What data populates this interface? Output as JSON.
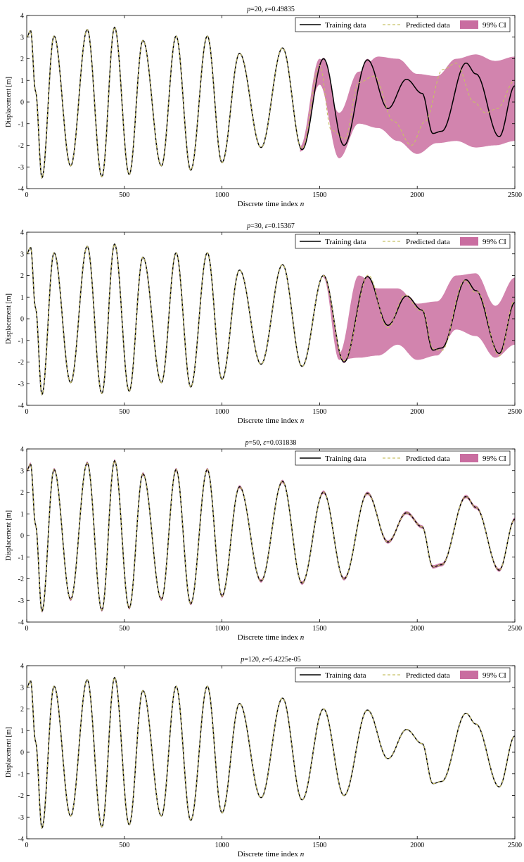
{
  "chart_data": [
    {
      "type": "line",
      "title": "p=20, ε=0.49835",
      "title_parts": {
        "p": "20",
        "eps": "0.49835"
      },
      "xlabel": "Discrete time index n",
      "ylabel": "Displacement [m]",
      "xlim": [
        0,
        2500
      ],
      "ylim": [
        -4,
        4
      ],
      "xticks": [
        "0",
        "500",
        "1000",
        "1500",
        "2000",
        "2500"
      ],
      "yticks": [
        "-4",
        "-3",
        "-2",
        "-1",
        "0",
        "1",
        "2",
        "3",
        "4"
      ],
      "legend_position": "top-right",
      "legend": [
        "Training data",
        "Predicted data",
        "99% CI"
      ],
      "extrapolation_start": 1400,
      "series": [
        {
          "name": "Training data",
          "style": "solid",
          "color": "#000000"
        },
        {
          "name": "Predicted data",
          "style": "dashed",
          "color": "#c8c064",
          "values": [
            [
              0,
              3.0
            ],
            [
              20,
              3.1
            ],
            [
              45,
              0.5
            ],
            [
              78,
              -3.5
            ],
            [
              140,
              3.0
            ],
            [
              225,
              -2.9
            ],
            [
              310,
              3.35
            ],
            [
              385,
              -3.4
            ],
            [
              450,
              3.45
            ],
            [
              525,
              -3.3
            ],
            [
              595,
              2.85
            ],
            [
              690,
              -2.9
            ],
            [
              765,
              3.05
            ],
            [
              840,
              -3.1
            ],
            [
              925,
              3.05
            ],
            [
              1000,
              -2.8
            ],
            [
              1090,
              2.25
            ],
            [
              1200,
              -2.05
            ],
            [
              1310,
              2.5
            ],
            [
              1410,
              -2.15
            ],
            [
              1500,
              1.7
            ],
            [
              1560,
              -1.3
            ],
            [
              1630,
              -1.7
            ],
            [
              1700,
              0.9
            ],
            [
              1780,
              1.2
            ],
            [
              1880,
              -0.9
            ],
            [
              1970,
              -2.0
            ],
            [
              2040,
              -0.9
            ],
            [
              2130,
              1.5
            ],
            [
              2200,
              1.8
            ],
            [
              2290,
              0.0
            ],
            [
              2350,
              -0.5
            ],
            [
              2410,
              -0.3
            ],
            [
              2500,
              1.0
            ]
          ]
        },
        {
          "name": "99% CI",
          "style": "band",
          "color": "#c0548f",
          "lower": [
            [
              1400,
              -2.3
            ],
            [
              1500,
              0.8
            ],
            [
              1600,
              -2.6
            ],
            [
              1700,
              -1.0
            ],
            [
              1800,
              -1.2
            ],
            [
              1900,
              -1.8
            ],
            [
              2000,
              -2.4
            ],
            [
              2100,
              -1.9
            ],
            [
              2200,
              -1.8
            ],
            [
              2300,
              -2.1
            ],
            [
              2400,
              -2.0
            ],
            [
              2500,
              -1.8
            ]
          ],
          "upper": [
            [
              1400,
              -2.05
            ],
            [
              1500,
              2.0
            ],
            [
              1600,
              -0.5
            ],
            [
              1700,
              1.4
            ],
            [
              1800,
              2.1
            ],
            [
              1900,
              2.0
            ],
            [
              2000,
              1.3
            ],
            [
              2100,
              1.2
            ],
            [
              2200,
              2.0
            ],
            [
              2300,
              2.2
            ],
            [
              2400,
              1.9
            ],
            [
              2500,
              2.1
            ]
          ]
        }
      ]
    },
    {
      "type": "line",
      "title": "p=30, ε=0.15367",
      "title_parts": {
        "p": "30",
        "eps": "0.15367"
      },
      "xlabel": "Discrete time index n",
      "ylabel": "Displacement [m]",
      "xlim": [
        0,
        2500
      ],
      "ylim": [
        -4,
        4
      ],
      "xticks": [
        "0",
        "500",
        "1000",
        "1500",
        "2000",
        "2500"
      ],
      "yticks": [
        "-4",
        "-3",
        "-2",
        "-1",
        "0",
        "1",
        "2",
        "3",
        "4"
      ],
      "legend_position": "top-right",
      "legend": [
        "Training data",
        "Predicted data",
        "99% CI"
      ],
      "extrapolation_start": 1520,
      "series": [
        {
          "name": "Training data",
          "style": "solid",
          "color": "#000000"
        },
        {
          "name": "Predicted data",
          "style": "dashed",
          "color": "#c8c064"
        },
        {
          "name": "99% CI",
          "style": "band",
          "color": "#c0548f",
          "lower": [
            [
              1520,
              1.9
            ],
            [
              1600,
              -1.9
            ],
            [
              1700,
              -1.8
            ],
            [
              1800,
              -1.7
            ],
            [
              1900,
              -1.2
            ],
            [
              2000,
              -1.9
            ],
            [
              2100,
              -1.7
            ],
            [
              2200,
              -0.5
            ],
            [
              2300,
              -0.8
            ],
            [
              2400,
              -1.8
            ],
            [
              2500,
              -1.2
            ]
          ],
          "upper": [
            [
              1520,
              2.05
            ],
            [
              1600,
              -1.6
            ],
            [
              1700,
              2.0
            ],
            [
              1800,
              1.4
            ],
            [
              1900,
              1.4
            ],
            [
              2000,
              0.7
            ],
            [
              2100,
              0.8
            ],
            [
              2200,
              2.0
            ],
            [
              2300,
              2.1
            ],
            [
              2400,
              0.6
            ],
            [
              2500,
              1.9
            ]
          ]
        }
      ]
    },
    {
      "type": "line",
      "title": "p=50, ε=0.031838",
      "title_parts": {
        "p": "50",
        "eps": "0.031838"
      },
      "xlabel": "Discrete time index n",
      "ylabel": "Displacement [m]",
      "xlim": [
        0,
        2500
      ],
      "ylim": [
        -4,
        4
      ],
      "xticks": [
        "0",
        "500",
        "1000",
        "1500",
        "2000",
        "2500"
      ],
      "yticks": [
        "-4",
        "-3",
        "-2",
        "-1",
        "0",
        "1",
        "2",
        "3",
        "4"
      ],
      "legend_position": "top-right",
      "legend": [
        "Training data",
        "Predicted data",
        "99% CI"
      ],
      "series": [
        {
          "name": "Training data",
          "style": "solid",
          "color": "#000000"
        },
        {
          "name": "Predicted data",
          "style": "dashed",
          "color": "#c8c064"
        },
        {
          "name": "99% CI",
          "style": "band",
          "color": "#c0548f",
          "width": 0.08
        }
      ]
    },
    {
      "type": "line",
      "title": "p=120, ε=5.4225e-05",
      "title_parts": {
        "p": "120",
        "eps": "5.4225e-05"
      },
      "xlabel": "Discrete time index n",
      "ylabel": "Displacement [m]",
      "xlim": [
        0,
        2500
      ],
      "ylim": [
        -4,
        4
      ],
      "xticks": [
        "0",
        "500",
        "1000",
        "1500",
        "2000",
        "2500"
      ],
      "yticks": [
        "-4",
        "-3",
        "-2",
        "-1",
        "0",
        "1",
        "2",
        "3",
        "4"
      ],
      "legend_position": "top-right",
      "legend": [
        "Training data",
        "Predicted data",
        "99% CI"
      ],
      "series": [
        {
          "name": "Training data",
          "style": "solid",
          "color": "#000000"
        },
        {
          "name": "Predicted data",
          "style": "dashed",
          "color": "#c8c064"
        },
        {
          "name": "99% CI",
          "style": "band",
          "color": "#c0548f",
          "width": 0.0
        }
      ]
    }
  ],
  "training_signal": [
    [
      0,
      3.0
    ],
    [
      20,
      3.3
    ],
    [
      45,
      0.5
    ],
    [
      78,
      -3.5
    ],
    [
      140,
      3.05
    ],
    [
      225,
      -2.95
    ],
    [
      310,
      3.35
    ],
    [
      385,
      -3.45
    ],
    [
      450,
      3.45
    ],
    [
      525,
      -3.35
    ],
    [
      595,
      2.85
    ],
    [
      690,
      -2.95
    ],
    [
      765,
      3.05
    ],
    [
      840,
      -3.15
    ],
    [
      925,
      3.05
    ],
    [
      1000,
      -2.8
    ],
    [
      1090,
      2.25
    ],
    [
      1200,
      -2.1
    ],
    [
      1310,
      2.5
    ],
    [
      1410,
      -2.2
    ],
    [
      1520,
      2.0
    ],
    [
      1625,
      -2.0
    ],
    [
      1745,
      1.95
    ],
    [
      1850,
      -0.3
    ],
    [
      1945,
      1.05
    ],
    [
      2025,
      0.4
    ],
    [
      2080,
      -1.45
    ],
    [
      2125,
      -1.35
    ],
    [
      2250,
      1.8
    ],
    [
      2300,
      1.3
    ],
    [
      2420,
      -1.6
    ],
    [
      2500,
      0.75
    ]
  ]
}
